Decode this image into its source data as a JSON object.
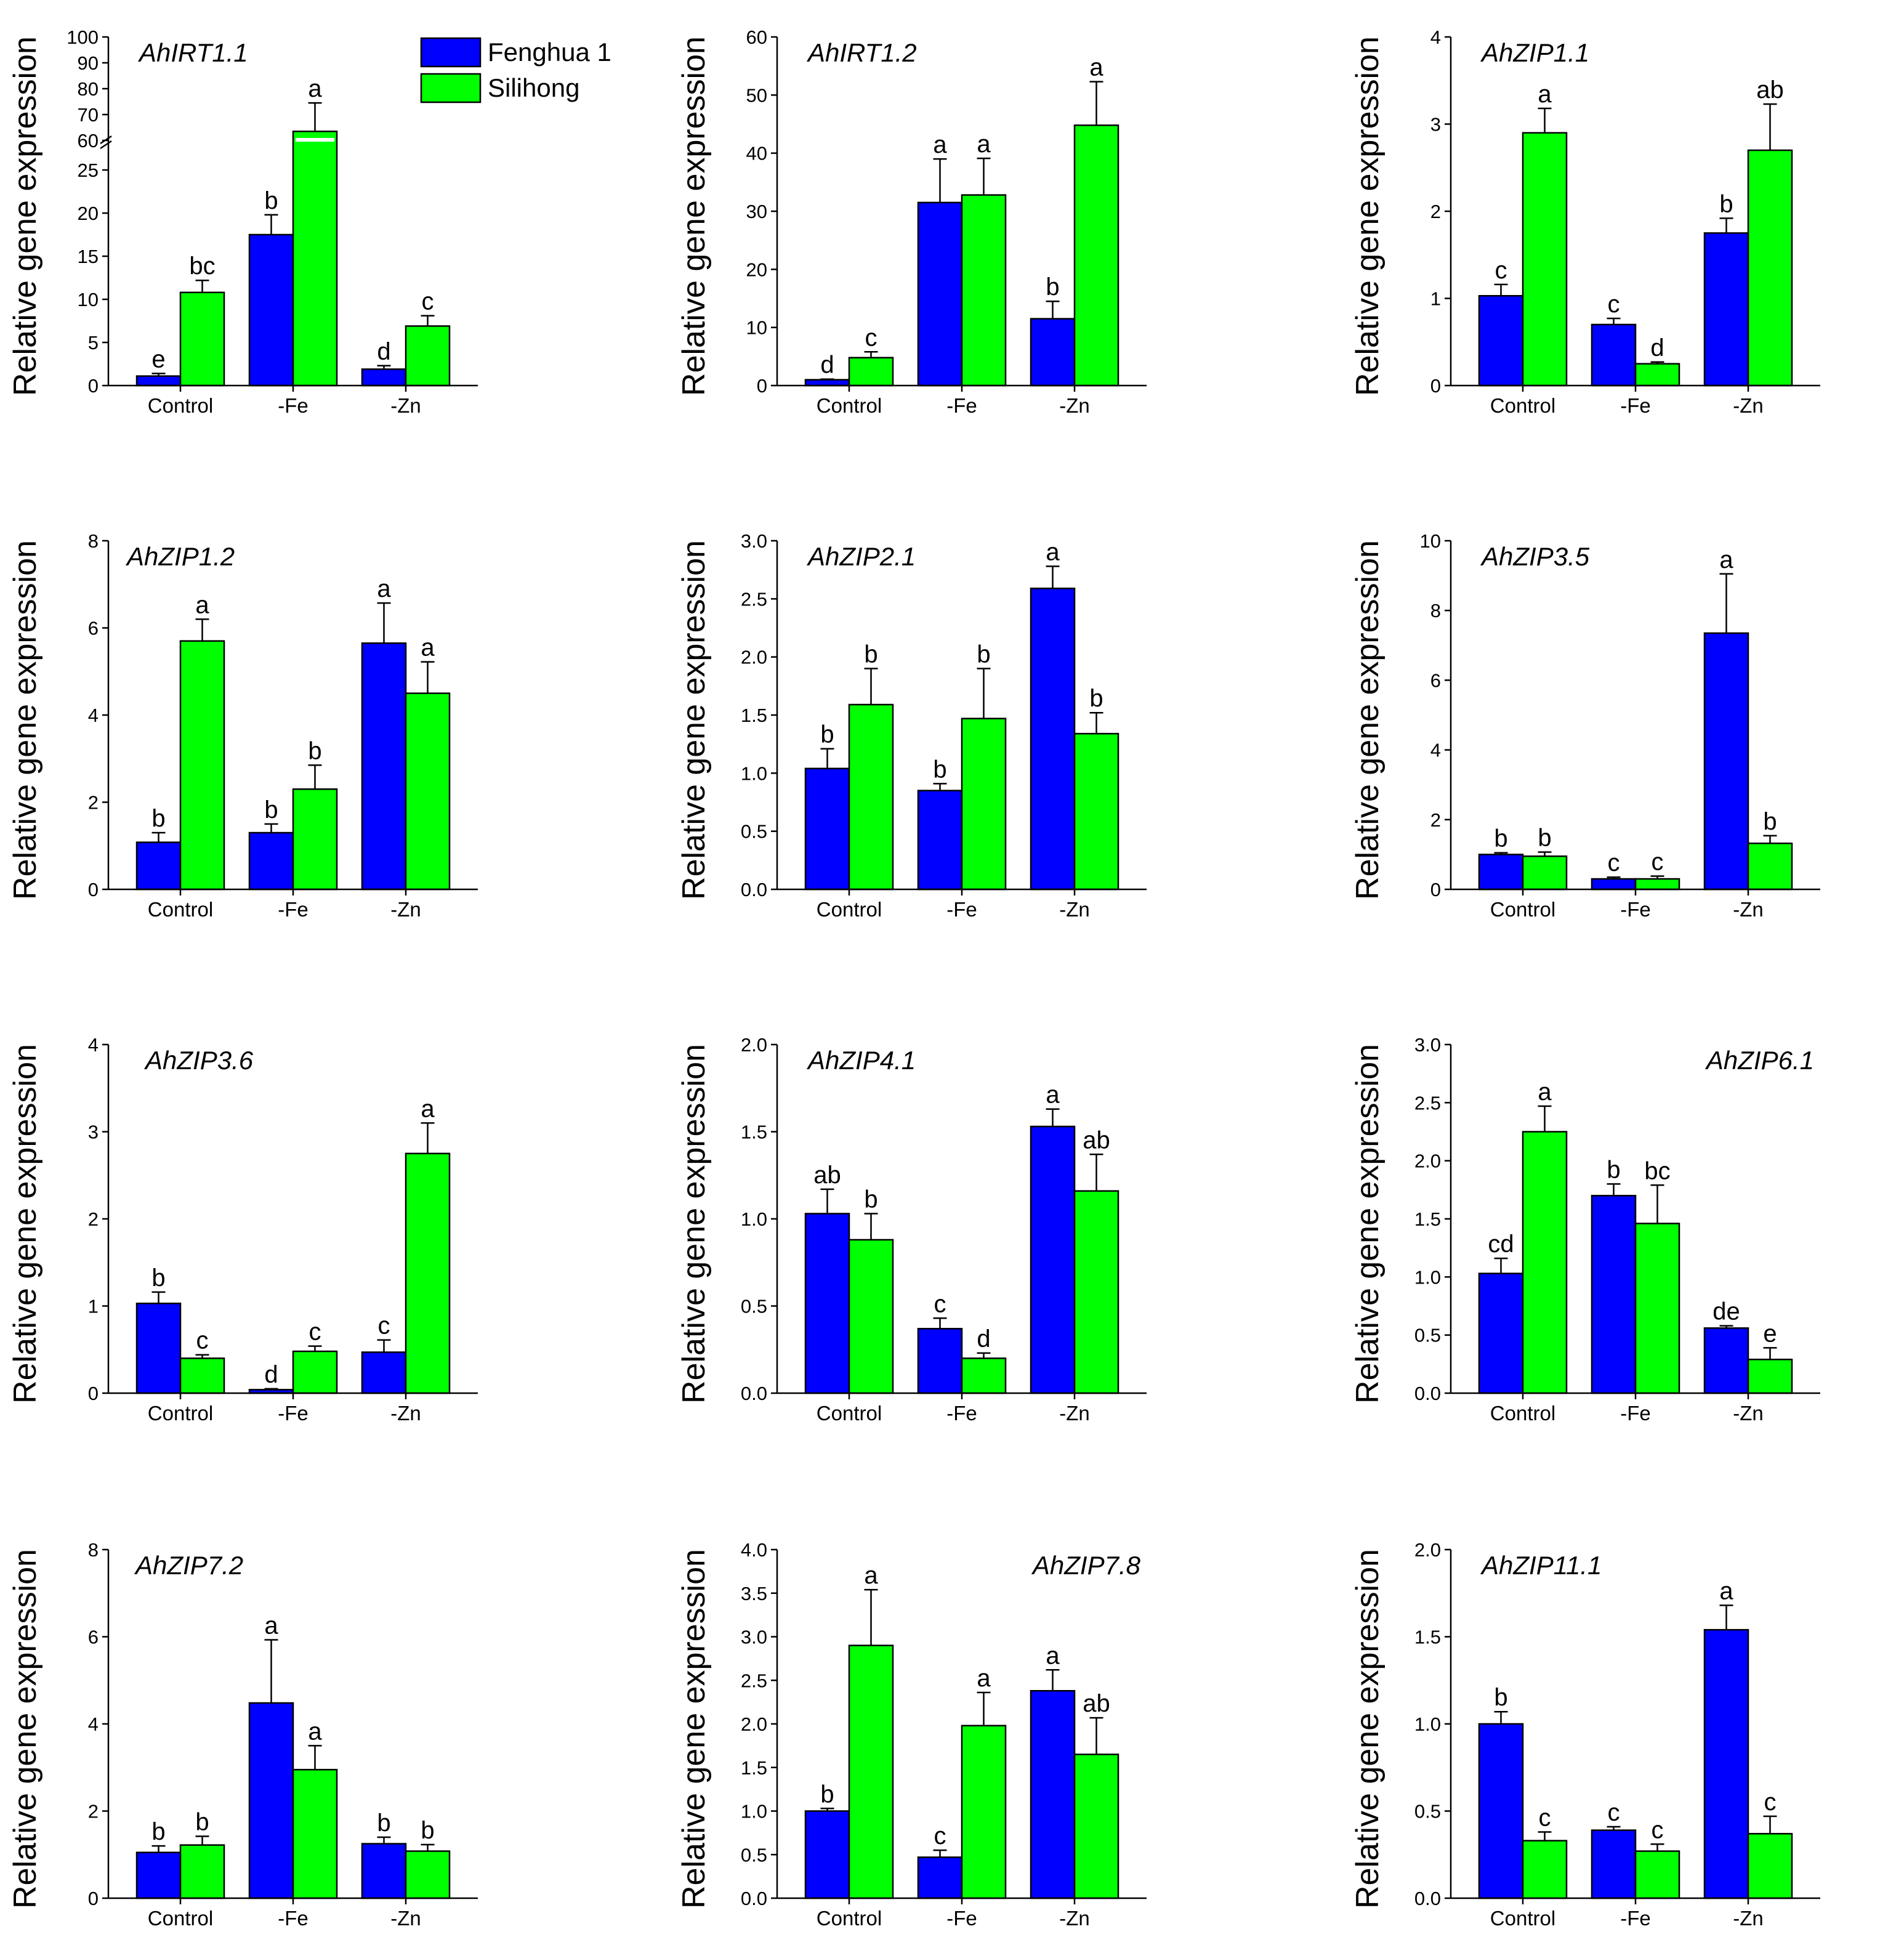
{
  "figure": {
    "colors": {
      "Fenghua 1": "#0000ff",
      "Silihong": "#00ff00",
      "axis": "#000000",
      "bar_outline": "#000000"
    },
    "legend": [
      {
        "label": "Fenghua 1",
        "color": "#0000ff"
      },
      {
        "label": "Silihong",
        "color": "#00ff00"
      }
    ]
  },
  "chart_data": [
    {
      "type": "bar",
      "title": "AhIRT1.1",
      "ylabel": "Relative gene expression",
      "categories": [
        "Control",
        "-Fe",
        "-Zn"
      ],
      "y_break": {
        "lower": [
          0,
          28
        ],
        "upper": [
          60,
          100
        ]
      },
      "yticks_lower": [
        0,
        5,
        10,
        15,
        20,
        25
      ],
      "yticks_upper": [
        60,
        70,
        80,
        90,
        100
      ],
      "series": [
        {
          "name": "Fenghua 1",
          "values": [
            1.1,
            17.5,
            1.9
          ],
          "errors": [
            0.3,
            2.3,
            0.4
          ],
          "letters": [
            "e",
            "b",
            "d"
          ]
        },
        {
          "name": "Silihong",
          "values": [
            10.8,
            63.5,
            6.9
          ],
          "errors": [
            1.4,
            11,
            1.2
          ],
          "letters": [
            "bc",
            "a",
            "c"
          ]
        }
      ]
    },
    {
      "type": "bar",
      "title": "AhIRT1.2",
      "ylabel": "Relative gene expression",
      "categories": [
        "Control",
        "-Fe",
        "-Zn"
      ],
      "ylim": [
        0,
        60
      ],
      "yticks": [
        0,
        10,
        20,
        30,
        40,
        50,
        60
      ],
      "series": [
        {
          "name": "Fenghua 1",
          "values": [
            1.0,
            31.5,
            11.5
          ],
          "errors": [
            0.1,
            7.5,
            3.0
          ],
          "letters": [
            "d",
            "a",
            "b"
          ]
        },
        {
          "name": "Silihong",
          "values": [
            4.8,
            32.8,
            44.8
          ],
          "errors": [
            1.0,
            6.3,
            7.5
          ],
          "letters": [
            "c",
            "a",
            "a"
          ]
        }
      ]
    },
    {
      "type": "bar",
      "title": "AhZIP1.1",
      "ylabel": "Relative gene expression",
      "categories": [
        "Control",
        "-Fe",
        "-Zn"
      ],
      "ylim": [
        0,
        4
      ],
      "yticks": [
        0,
        1,
        2,
        3,
        4
      ],
      "series": [
        {
          "name": "Fenghua 1",
          "values": [
            1.03,
            0.7,
            1.75
          ],
          "errors": [
            0.13,
            0.07,
            0.17
          ],
          "letters": [
            "c",
            "c",
            "b"
          ]
        },
        {
          "name": "Silihong",
          "values": [
            2.9,
            0.25,
            2.7
          ],
          "errors": [
            0.28,
            0.02,
            0.53
          ],
          "letters": [
            "a",
            "d",
            "ab"
          ]
        }
      ]
    },
    {
      "type": "bar",
      "title": "AhZIP1.2",
      "ylabel": "Relative gene expression",
      "categories": [
        "Control",
        "-Fe",
        "-Zn"
      ],
      "ylim": [
        0,
        8
      ],
      "yticks": [
        0,
        2,
        4,
        6,
        8
      ],
      "series": [
        {
          "name": "Fenghua 1",
          "values": [
            1.08,
            1.3,
            5.65
          ],
          "errors": [
            0.22,
            0.2,
            0.92
          ],
          "letters": [
            "b",
            "b",
            "a"
          ]
        },
        {
          "name": "Silihong",
          "values": [
            5.7,
            2.3,
            4.5
          ],
          "errors": [
            0.5,
            0.55,
            0.72
          ],
          "letters": [
            "a",
            "b",
            "a"
          ]
        }
      ]
    },
    {
      "type": "bar",
      "title": "AhZIP2.1",
      "ylabel": "Relative gene expression",
      "categories": [
        "Control",
        "-Fe",
        "-Zn"
      ],
      "ylim": [
        0,
        3
      ],
      "yticks": [
        "0.0",
        "0.5",
        "1.0",
        "1.5",
        "2.0",
        "2.5",
        "3.0"
      ],
      "series": [
        {
          "name": "Fenghua 1",
          "values": [
            1.04,
            0.85,
            2.59
          ],
          "errors": [
            0.17,
            0.06,
            0.19
          ],
          "letters": [
            "b",
            "b",
            "a"
          ]
        },
        {
          "name": "Silihong",
          "values": [
            1.59,
            1.47,
            1.34
          ],
          "errors": [
            0.31,
            0.43,
            0.18
          ],
          "letters": [
            "b",
            "b",
            "b"
          ]
        }
      ]
    },
    {
      "type": "bar",
      "title": "AhZIP3.5",
      "ylabel": "Relative gene expression",
      "categories": [
        "Control",
        "-Fe",
        "-Zn"
      ],
      "ylim": [
        0,
        10
      ],
      "yticks": [
        0,
        2,
        4,
        6,
        8,
        10
      ],
      "series": [
        {
          "name": "Fenghua 1",
          "values": [
            1.0,
            0.3,
            7.35
          ],
          "errors": [
            0.05,
            0.05,
            1.7
          ],
          "letters": [
            "b",
            "c",
            "a"
          ]
        },
        {
          "name": "Silihong",
          "values": [
            0.95,
            0.3,
            1.32
          ],
          "errors": [
            0.12,
            0.08,
            0.22
          ],
          "letters": [
            "b",
            "c",
            "b"
          ]
        }
      ]
    },
    {
      "type": "bar",
      "title": "AhZIP3.6",
      "ylabel": "Relative gene expression",
      "categories": [
        "Control",
        "-Fe",
        "-Zn"
      ],
      "ylim": [
        0,
        4
      ],
      "yticks": [
        0,
        1,
        2,
        3,
        4
      ],
      "series": [
        {
          "name": "Fenghua 1",
          "values": [
            1.03,
            0.04,
            0.47
          ],
          "errors": [
            0.13,
            0.01,
            0.14
          ],
          "letters": [
            "b",
            "d",
            "c"
          ]
        },
        {
          "name": "Silihong",
          "values": [
            0.4,
            0.48,
            2.75
          ],
          "errors": [
            0.04,
            0.06,
            0.35
          ],
          "letters": [
            "c",
            "c",
            "a"
          ]
        }
      ]
    },
    {
      "type": "bar",
      "title": "AhZIP4.1",
      "ylabel": "Relative gene expression",
      "categories": [
        "Control",
        "-Fe",
        "-Zn"
      ],
      "ylim": [
        0,
        2
      ],
      "yticks": [
        "0.0",
        "0.5",
        "1.0",
        "1.5",
        "2.0"
      ],
      "series": [
        {
          "name": "Fenghua 1",
          "values": [
            1.03,
            0.37,
            1.53
          ],
          "errors": [
            0.14,
            0.06,
            0.1
          ],
          "letters": [
            "ab",
            "c",
            "a"
          ]
        },
        {
          "name": "Silihong",
          "values": [
            0.88,
            0.2,
            1.16
          ],
          "errors": [
            0.15,
            0.03,
            0.21
          ],
          "letters": [
            "b",
            "d",
            "ab"
          ]
        }
      ]
    },
    {
      "type": "bar",
      "title": "AhZIP6.1",
      "ylabel": "Relative gene expression",
      "categories": [
        "Control",
        "-Fe",
        "-Zn"
      ],
      "ylim": [
        0,
        3
      ],
      "yticks": [
        "0.0",
        "0.5",
        "1.0",
        "1.5",
        "2.0",
        "2.5",
        "3.0"
      ],
      "series": [
        {
          "name": "Fenghua 1",
          "values": [
            1.03,
            1.7,
            0.56
          ],
          "errors": [
            0.13,
            0.1,
            0.02
          ],
          "letters": [
            "cd",
            "b",
            "de"
          ]
        },
        {
          "name": "Silihong",
          "values": [
            2.25,
            1.46,
            0.29
          ],
          "errors": [
            0.22,
            0.33,
            0.1
          ],
          "letters": [
            "a",
            "bc",
            "e"
          ]
        }
      ]
    },
    {
      "type": "bar",
      "title": "AhZIP7.2",
      "ylabel": "Relative gene expression",
      "categories": [
        "Control",
        "-Fe",
        "-Zn"
      ],
      "ylim": [
        0,
        8
      ],
      "yticks": [
        0,
        2,
        4,
        6,
        8
      ],
      "series": [
        {
          "name": "Fenghua 1",
          "values": [
            1.05,
            4.48,
            1.25
          ],
          "errors": [
            0.15,
            1.45,
            0.15
          ],
          "letters": [
            "b",
            "a",
            "b"
          ]
        },
        {
          "name": "Silihong",
          "values": [
            1.22,
            2.95,
            1.08
          ],
          "errors": [
            0.2,
            0.55,
            0.15
          ],
          "letters": [
            "b",
            "a",
            "b"
          ]
        }
      ]
    },
    {
      "type": "bar",
      "title": "AhZIP7.8",
      "ylabel": "Relative gene expression",
      "categories": [
        "Control",
        "-Fe",
        "-Zn"
      ],
      "ylim": [
        0,
        4
      ],
      "yticks": [
        "0.0",
        "0.5",
        "1.0",
        "1.5",
        "2.0",
        "2.5",
        "3.0",
        "3.5",
        "4.0"
      ],
      "series": [
        {
          "name": "Fenghua 1",
          "values": [
            1.0,
            0.47,
            2.38
          ],
          "errors": [
            0.03,
            0.08,
            0.24
          ],
          "letters": [
            "b",
            "c",
            "a"
          ]
        },
        {
          "name": "Silihong",
          "values": [
            2.9,
            1.98,
            1.65
          ],
          "errors": [
            0.64,
            0.38,
            0.42
          ],
          "letters": [
            "a",
            "a",
            "ab"
          ]
        }
      ]
    },
    {
      "type": "bar",
      "title": "AhZIP11.1",
      "ylabel": "Relative gene expression",
      "categories": [
        "Control",
        "-Fe",
        "-Zn"
      ],
      "ylim": [
        0,
        2
      ],
      "yticks": [
        "0.0",
        "0.5",
        "1.0",
        "1.5",
        "2.0"
      ],
      "series": [
        {
          "name": "Fenghua 1",
          "values": [
            1.0,
            0.39,
            1.54
          ],
          "errors": [
            0.07,
            0.02,
            0.14
          ],
          "letters": [
            "b",
            "c",
            "a"
          ]
        },
        {
          "name": "Silihong",
          "values": [
            0.33,
            0.27,
            0.37
          ],
          "errors": [
            0.05,
            0.04,
            0.1
          ],
          "letters": [
            "c",
            "c",
            "c"
          ]
        }
      ]
    }
  ]
}
